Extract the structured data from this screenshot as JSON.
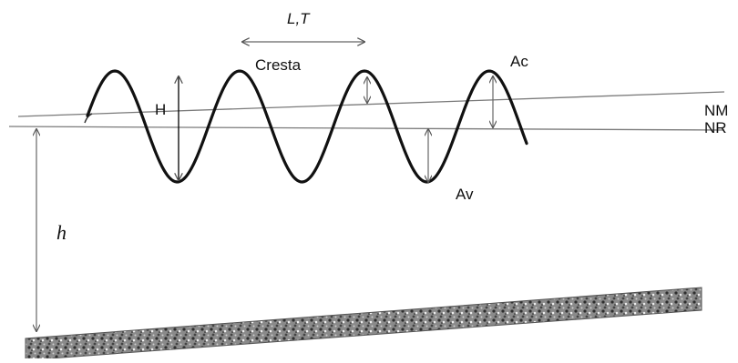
{
  "diagram": {
    "labels": {
      "wavelength_period": "L,T",
      "crest": "Cresta",
      "height": "H",
      "crest_amplitude": "Ac",
      "trough_amplitude": "Av",
      "mean_level": "NM",
      "reference_level": "NR",
      "depth": "h"
    },
    "colors": {
      "wave": "#111111",
      "lines": "#777777",
      "arrows": "#666666",
      "seabed": "#555555"
    }
  }
}
